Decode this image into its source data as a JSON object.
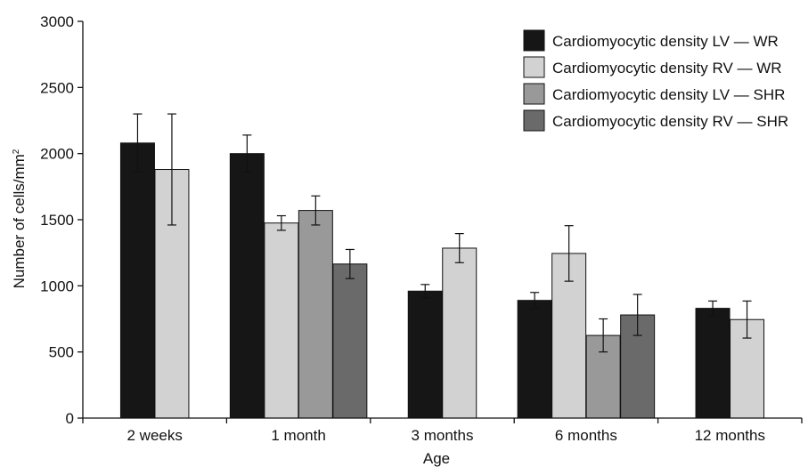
{
  "chart_data": {
    "type": "bar",
    "xlabel": "Age",
    "ylabel": "Number of cells/mm",
    "ylabel_superscript": "2",
    "ylim": [
      0,
      3000
    ],
    "yticks": [
      "0",
      "500",
      "1000",
      "1500",
      "2000",
      "2500",
      "3000"
    ],
    "categories": [
      "2 weeks",
      "1 month",
      "3 months",
      "6 months",
      "12 months"
    ],
    "legend_position": "top-right",
    "series": [
      {
        "name": "Cardiomyocytic density LV — WR",
        "color": "#161616",
        "values": [
          2080,
          2000,
          960,
          890,
          830
        ],
        "errors": [
          220,
          140,
          50,
          60,
          55
        ]
      },
      {
        "name": "Cardiomyocytic density RV — WR",
        "color": "#d2d2d2",
        "values": [
          1880,
          1475,
          1285,
          1245,
          745
        ],
        "errors": [
          420,
          55,
          110,
          210,
          140
        ]
      },
      {
        "name": "Cardiomyocytic density LV — SHR",
        "color": "#999999",
        "values": [
          null,
          1570,
          null,
          625,
          null
        ],
        "errors": [
          null,
          110,
          null,
          125,
          null
        ]
      },
      {
        "name": "Cardiomyocytic density RV — SHR",
        "color": "#6a6a6a",
        "values": [
          null,
          1165,
          null,
          780,
          null
        ],
        "errors": [
          null,
          110,
          null,
          155,
          null
        ]
      }
    ]
  }
}
